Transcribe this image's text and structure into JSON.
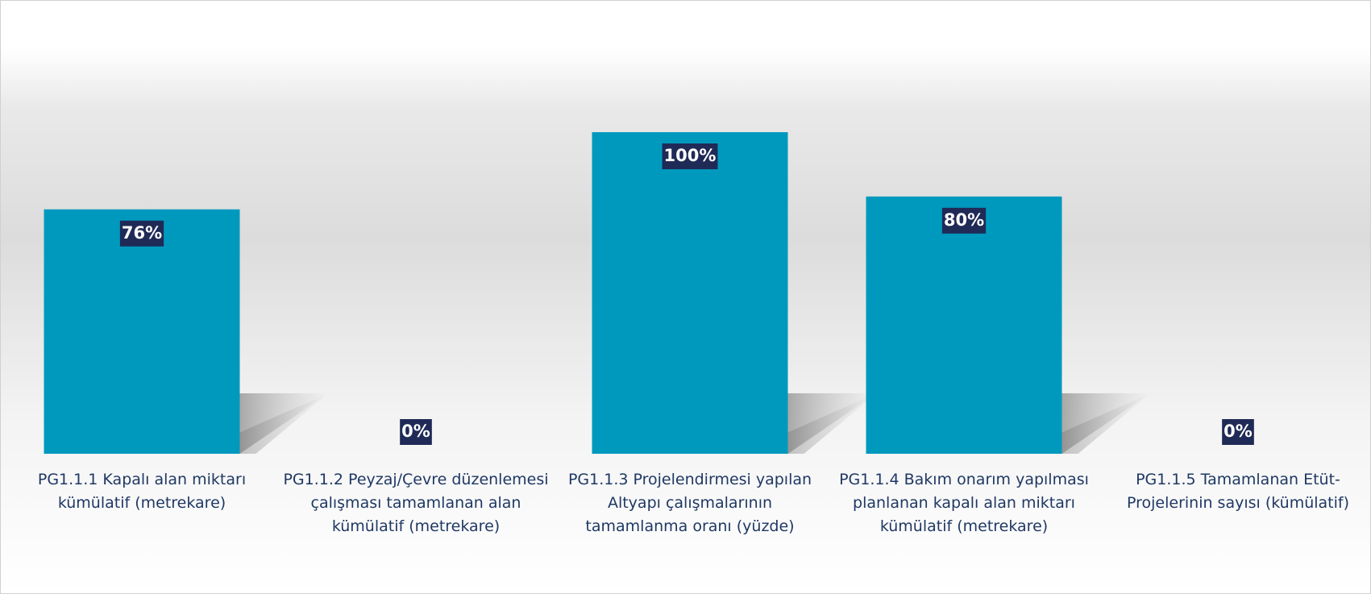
{
  "chart_data": {
    "type": "bar",
    "categories": [
      "PG1.1.1 Kapalı alan miktarı kümülatif (metrekare)",
      "PG1.1.2 Peyzaj/Çevre düzenlemesi çalışması tamamlanan alan kümülatif (metrekare)",
      "PG1.1.3 Projelendirmesi yapılan Altyapı çalışmalarının tamamlanma oranı (yüzde)",
      "PG1.1.4 Bakım onarım yapılması planlanan kapalı alan miktarı kümülatif (metrekare)",
      "PG1.1.5 Tamamlanan Etüt-Projelerinin sayısı (kümülatif)"
    ],
    "values": [
      76,
      0,
      100,
      80,
      0
    ],
    "value_labels": [
      "76%",
      "0%",
      "100%",
      "80%",
      "0%"
    ],
    "color": "#0099be"
  }
}
